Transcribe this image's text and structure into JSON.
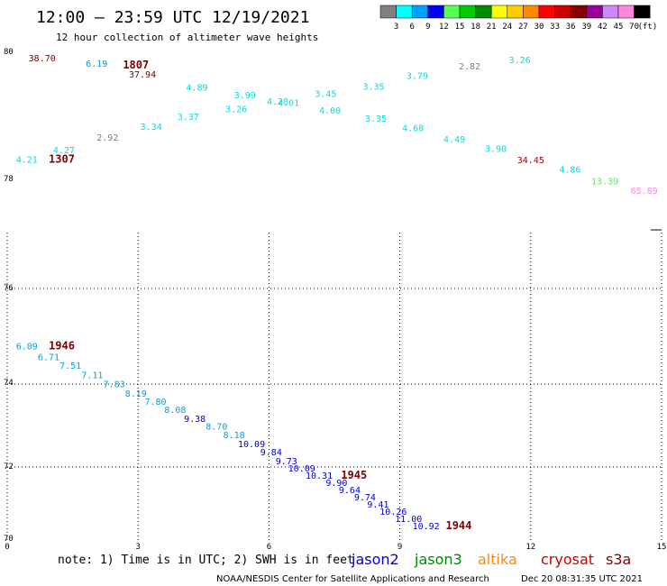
{
  "header": {
    "title": "12:00 – 23:59 UTC 12/19/2021",
    "subtitle": "12 hour collection of altimeter wave heights"
  },
  "legend": {
    "unit": "(ft)",
    "bins": [
      {
        "label": "3",
        "color": "#7f7f7f"
      },
      {
        "label": "6",
        "color": "#00ffff"
      },
      {
        "label": "9",
        "color": "#00a0ff"
      },
      {
        "label": "12",
        "color": "#0000ff"
      },
      {
        "label": "15",
        "color": "#55ff55"
      },
      {
        "label": "18",
        "color": "#00cc00"
      },
      {
        "label": "21",
        "color": "#008800"
      },
      {
        "label": "24",
        "color": "#ffff00"
      },
      {
        "label": "27",
        "color": "#ffcc00"
      },
      {
        "label": "30",
        "color": "#ff8800"
      },
      {
        "label": "33",
        "color": "#ff0000"
      },
      {
        "label": "36",
        "color": "#cc0000"
      },
      {
        "label": "39",
        "color": "#880000"
      },
      {
        "label": "42",
        "color": "#990099"
      },
      {
        "label": "45",
        "color": "#cc88ff"
      },
      {
        "label": "70",
        "color": "#ff88dd"
      },
      {
        "label": "",
        "color": "#000000"
      }
    ]
  },
  "chart_data": {
    "type": "scatter",
    "x_axis": {
      "ticks": [
        "0",
        "3",
        "6",
        "9",
        "12",
        "15"
      ],
      "range": [
        0,
        15
      ]
    },
    "y_axis": {
      "ticks": [
        "70",
        "72",
        "74",
        "76",
        "78",
        "80"
      ],
      "range": [
        70,
        80
      ]
    },
    "grid": true,
    "upper_points": [
      {
        "x": 0.8,
        "y": 79.86,
        "label": "38.70",
        "color": "#7a0000"
      },
      {
        "x": 2.05,
        "y": 79.77,
        "label": "6.19",
        "color": "#00a0dd"
      },
      {
        "x": 3.1,
        "y": 79.6,
        "label": "37.94",
        "color": "#7a0000"
      },
      {
        "x": 4.35,
        "y": 79.39,
        "label": "4.89",
        "color": "#00dddd"
      },
      {
        "x": 5.45,
        "y": 79.27,
        "label": "3.99",
        "color": "#00dddd"
      },
      {
        "x": 6.2,
        "y": 79.17,
        "label": "4.28",
        "color": "#00dddd"
      },
      {
        "x": 6.45,
        "y": 79.15,
        "label": "4.01",
        "color": "#00dddd"
      },
      {
        "x": 7.3,
        "y": 79.29,
        "label": "3.45",
        "color": "#00dddd"
      },
      {
        "x": 8.4,
        "y": 79.41,
        "label": "3.35",
        "color": "#00dddd"
      },
      {
        "x": 9.4,
        "y": 79.58,
        "label": "3.79",
        "color": "#00dddd"
      },
      {
        "x": 10.6,
        "y": 79.73,
        "label": "2.82",
        "color": "#808080"
      },
      {
        "x": 11.75,
        "y": 79.83,
        "label": "3.26",
        "color": "#00dddd"
      },
      {
        "x": 0.45,
        "y": 78.25,
        "label": "4.21",
        "color": "#00dddd"
      },
      {
        "x": 1.3,
        "y": 78.4,
        "label": "4.27",
        "color": "#00dddd"
      },
      {
        "x": 2.3,
        "y": 78.6,
        "label": "2.92",
        "color": "#808080"
      },
      {
        "x": 3.3,
        "y": 78.77,
        "label": "3.34",
        "color": "#00dddd"
      },
      {
        "x": 4.15,
        "y": 78.93,
        "label": "3.37",
        "color": "#00dddd"
      },
      {
        "x": 5.25,
        "y": 79.05,
        "label": "3.26",
        "color": "#00dddd"
      },
      {
        "x": 7.4,
        "y": 79.03,
        "label": "4.00",
        "color": "#00dddd"
      },
      {
        "x": 8.45,
        "y": 78.9,
        "label": "3.35",
        "color": "#00dddd"
      },
      {
        "x": 9.3,
        "y": 78.75,
        "label": "4.68",
        "color": "#00dddd"
      },
      {
        "x": 10.25,
        "y": 78.57,
        "label": "4.49",
        "color": "#00dddd"
      },
      {
        "x": 11.2,
        "y": 78.42,
        "label": "3.90",
        "color": "#00dddd"
      },
      {
        "x": 12.0,
        "y": 78.24,
        "label": "34.45",
        "color": "#aa0000"
      },
      {
        "x": 12.9,
        "y": 78.09,
        "label": "4.86",
        "color": "#00dddd"
      },
      {
        "x": 13.7,
        "y": 77.91,
        "label": "13.39",
        "color": "#55ee55"
      },
      {
        "x": 14.6,
        "y": 77.76,
        "label": "65.89",
        "color": "#ff88dd"
      }
    ],
    "upper_labels": [
      {
        "x": 2.95,
        "y": 79.74,
        "text": "1807"
      },
      {
        "x": 1.25,
        "y": 78.25,
        "text": "1307"
      }
    ],
    "lower_points": [
      {
        "x": 0.45,
        "y": 74.73,
        "label": "6.09",
        "color": "#00a0dd"
      },
      {
        "x": 0.95,
        "y": 74.5,
        "label": "6.71",
        "color": "#00a0dd"
      },
      {
        "x": 1.45,
        "y": 74.32,
        "label": "7.51",
        "color": "#00a0dd"
      },
      {
        "x": 1.95,
        "y": 74.12,
        "label": "7.11",
        "color": "#00a0dd"
      },
      {
        "x": 2.45,
        "y": 73.92,
        "label": "7.83",
        "color": "#00a0dd"
      },
      {
        "x": 2.95,
        "y": 73.7,
        "label": "8.19",
        "color": "#00a0dd"
      },
      {
        "x": 3.4,
        "y": 73.5,
        "label": "7.80",
        "color": "#00a0dd"
      },
      {
        "x": 3.85,
        "y": 73.3,
        "label": "8.08",
        "color": "#00a0dd"
      },
      {
        "x": 4.3,
        "y": 73.09,
        "label": "9.38",
        "color": "#0000cc"
      },
      {
        "x": 4.8,
        "y": 72.9,
        "label": "8.70",
        "color": "#00a0dd"
      },
      {
        "x": 5.2,
        "y": 72.7,
        "label": "8.18",
        "color": "#00a0dd"
      },
      {
        "x": 5.6,
        "y": 72.48,
        "label": "10.09",
        "color": "#0000cc"
      },
      {
        "x": 6.05,
        "y": 72.28,
        "label": "9.84",
        "color": "#0000cc"
      },
      {
        "x": 6.4,
        "y": 72.07,
        "label": "9.73",
        "color": "#0000cc"
      },
      {
        "x": 6.75,
        "y": 71.88,
        "label": "10.09",
        "color": "#0000cc"
      },
      {
        "x": 7.15,
        "y": 71.68,
        "label": "10.31",
        "color": "#0000cc"
      },
      {
        "x": 7.55,
        "y": 71.48,
        "label": "9.90",
        "color": "#0000cc"
      },
      {
        "x": 7.85,
        "y": 71.28,
        "label": "9.64",
        "color": "#0000cc"
      },
      {
        "x": 8.2,
        "y": 71.08,
        "label": "9.74",
        "color": "#0000cc"
      },
      {
        "x": 8.5,
        "y": 70.87,
        "label": "9.41",
        "color": "#0000cc"
      },
      {
        "x": 8.85,
        "y": 70.68,
        "label": "10.26",
        "color": "#0000cc"
      },
      {
        "x": 9.2,
        "y": 70.48,
        "label": "11.00",
        "color": "#0000cc"
      },
      {
        "x": 9.6,
        "y": 70.28,
        "label": "10.92",
        "color": "#0000cc"
      }
    ],
    "lower_labels": [
      {
        "x": 1.25,
        "y": 74.73,
        "text": "1946"
      },
      {
        "x": 7.95,
        "y": 71.68,
        "text": "1945"
      },
      {
        "x": 10.35,
        "y": 70.28,
        "text": "1944"
      }
    ]
  },
  "footer": {
    "note": "note: 1) Time is in UTC; 2) SWH is in feet",
    "satellites": [
      {
        "name": "jason2",
        "color": "#0000cc"
      },
      {
        "name": "jason3",
        "color": "#008800"
      },
      {
        "name": "altika",
        "color": "#ff8800"
      },
      {
        "name": "cryosat",
        "color": "#cc0000"
      },
      {
        "name": "s3a",
        "color": "#880000"
      }
    ],
    "credit": "NOAA/NESDIS Center for Satellite Applications and Research",
    "timestamp": "Dec 20 08:31:35 UTC 2021"
  }
}
